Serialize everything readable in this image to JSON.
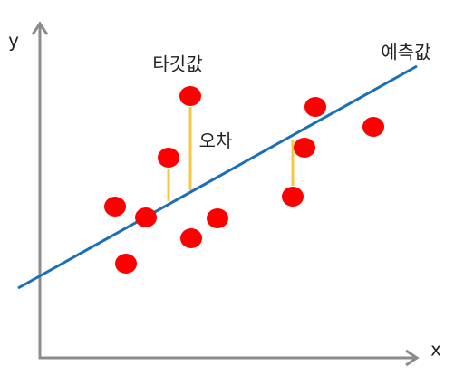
{
  "axes": {
    "y_label": "y",
    "x_label": "x"
  },
  "labels": {
    "target": "타깃값",
    "prediction": "예측값",
    "error": "오차"
  }
}
